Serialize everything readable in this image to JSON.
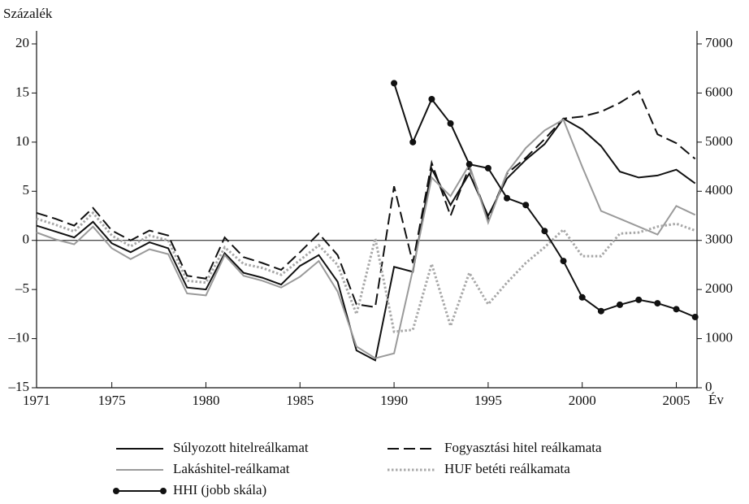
{
  "chart_data": {
    "type": "line",
    "y_label": "Százalék",
    "x_label": "Év",
    "x": [
      1971,
      1972,
      1973,
      1974,
      1975,
      1976,
      1977,
      1978,
      1979,
      1980,
      1981,
      1982,
      1983,
      1984,
      1985,
      1986,
      1987,
      1988,
      1989,
      1990,
      1991,
      1992,
      1993,
      1994,
      1995,
      1996,
      1997,
      1998,
      1999,
      2000,
      2001,
      2002,
      2003,
      2004,
      2005,
      2006
    ],
    "xlim": [
      1971,
      2006.1
    ],
    "xticks": [
      1971,
      1975,
      1980,
      1985,
      1990,
      1995,
      2000,
      2005
    ],
    "ylim": [
      -15,
      20
    ],
    "yticks": [
      {
        "value": -15,
        "label": "–15"
      },
      {
        "value": -10,
        "label": "–10"
      },
      {
        "value": -5,
        "label": "–5"
      },
      0,
      5,
      10,
      15,
      20
    ],
    "y2lim": [
      0,
      7000
    ],
    "y2ticks": [
      0,
      1000,
      2000,
      3000,
      4000,
      5000,
      6000,
      7000
    ],
    "series": [
      {
        "name": "Súlyozott hitelreálkamat",
        "color": "#111111",
        "dash": "solid",
        "values": [
          1.5,
          0.9,
          0.3,
          1.9,
          -0.3,
          -1.2,
          -0.2,
          -0.8,
          -4.8,
          -5.0,
          -1.3,
          -3.3,
          -3.8,
          -4.5,
          -2.6,
          -1.5,
          -4.2,
          -11.2,
          -12.2,
          -2.7,
          -3.2,
          7.3,
          3.6,
          6.8,
          2.5,
          6.3,
          8.2,
          9.8,
          12.4,
          11.3,
          9.6,
          7.0,
          6.4,
          6.6,
          7.2,
          5.8
        ]
      },
      {
        "name": "Fogyasztási hitel reálkamata",
        "color": "#111111",
        "dash": "dashed",
        "values": [
          2.8,
          2.2,
          1.5,
          3.3,
          1.0,
          0.0,
          1.0,
          0.5,
          -3.6,
          -3.9,
          0.3,
          -1.7,
          -2.3,
          -3.0,
          -1.2,
          0.7,
          -1.5,
          -6.5,
          -6.8,
          5.5,
          -2.3,
          7.9,
          2.5,
          7.5,
          2.2,
          6.8,
          8.4,
          10.3,
          12.4,
          12.6,
          13.1,
          14.0,
          15.2,
          10.8,
          9.9,
          8.3
        ]
      },
      {
        "name": "Lakáshitel-reálkamat",
        "color": "#9a9a9a",
        "dash": "solid",
        "values": [
          0.8,
          0.1,
          -0.4,
          1.4,
          -0.8,
          -1.9,
          -0.9,
          -1.4,
          -5.4,
          -5.6,
          -1.5,
          -3.6,
          -4.1,
          -4.8,
          -3.7,
          -2.1,
          -5.2,
          -10.8,
          -12.0,
          -11.5,
          -3.0,
          6.4,
          4.5,
          7.7,
          1.8,
          6.9,
          9.4,
          11.2,
          12.3,
          7.5,
          3.0,
          2.2,
          1.4,
          0.6,
          3.5,
          2.6
        ]
      },
      {
        "name": "HUF betéti reálkamata",
        "color": "#a8a8a8",
        "dash": "dotted",
        "values": [
          2.2,
          1.6,
          0.9,
          2.8,
          0.5,
          -0.6,
          0.5,
          0.0,
          -4.1,
          -4.3,
          -0.7,
          -2.4,
          -2.8,
          -3.5,
          -2.0,
          -0.5,
          -2.5,
          -7.5,
          0.2,
          -9.3,
          -9.1,
          -2.4,
          -8.7,
          -3.3,
          -6.5,
          -4.3,
          -2.3,
          -0.7,
          1.1,
          -1.6,
          -1.6,
          0.7,
          0.8,
          1.4,
          1.7,
          1.0
        ]
      },
      {
        "name": "HHI (jobb skála)",
        "color": "#111111",
        "dash": "solid",
        "marker": "circle",
        "axis": "y2",
        "values": [
          null,
          null,
          null,
          null,
          null,
          null,
          null,
          null,
          null,
          null,
          null,
          null,
          null,
          null,
          null,
          null,
          null,
          null,
          null,
          6200,
          5000,
          5875,
          5380,
          4550,
          4470,
          3860,
          3720,
          3190,
          2580,
          1840,
          1560,
          1690,
          1790,
          1720,
          1600,
          1440
        ]
      }
    ]
  }
}
